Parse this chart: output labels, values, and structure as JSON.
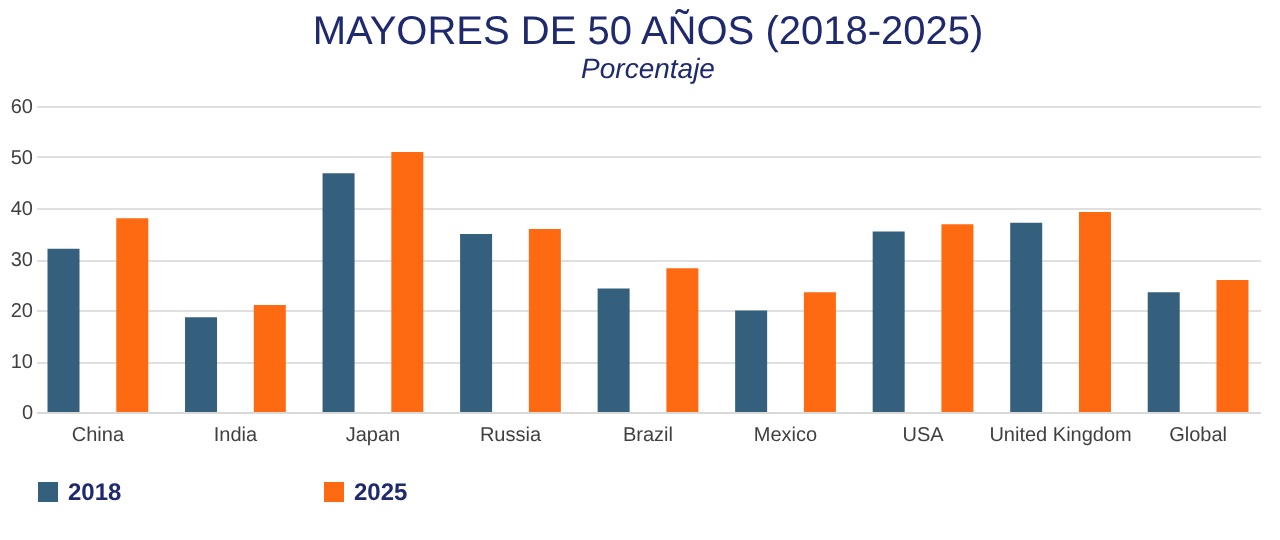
{
  "chart_data": {
    "type": "bar",
    "title": "MAYORES DE 50 AÑOS (2018-2025)",
    "subtitle": "Porcentaje",
    "categories": [
      "China",
      "India",
      "Japan",
      "Russia",
      "Brazil",
      "Mexico",
      "USA",
      "United Kingdom",
      "Global"
    ],
    "series": [
      {
        "name": "2018",
        "color": "#34607e",
        "values": [
          32,
          18.6,
          46.8,
          34.9,
          24.2,
          19.9,
          35.4,
          37.1,
          23.5
        ]
      },
      {
        "name": "2025",
        "color": "#fe6a12",
        "values": [
          38,
          21,
          51,
          35.9,
          28.2,
          23.5,
          36.8,
          39.2,
          25.9
        ]
      }
    ],
    "ylim": [
      0,
      60
    ],
    "yticks": [
      0,
      10,
      20,
      30,
      40,
      50,
      60
    ],
    "grid": "y",
    "legend": "bottom"
  }
}
